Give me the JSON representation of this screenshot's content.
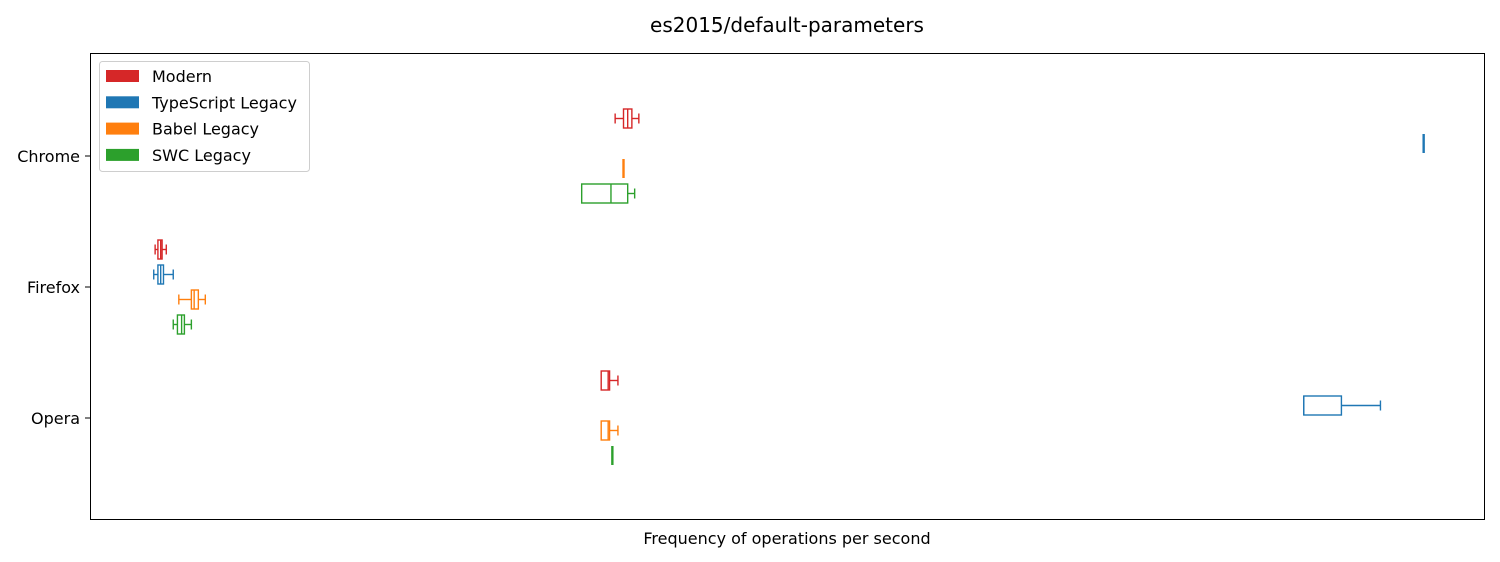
{
  "chart_data": {
    "type": "boxplot",
    "orientation": "horizontal",
    "title": "es2015/default-parameters",
    "xlabel": "Frequency of operations per second",
    "ylabel": "",
    "x_ticks_shown": false,
    "xlim": [
      0,
      100
    ],
    "categories": [
      "Chrome",
      "Firefox",
      "Opera"
    ],
    "legend": {
      "placement": "upper-left",
      "entries": [
        "Modern",
        "TypeScript Legacy",
        "Babel Legacy",
        "SWC Legacy"
      ]
    },
    "series": [
      {
        "name": "Modern",
        "color": "#d62728",
        "boxes": [
          {
            "category": "Chrome",
            "whislo": 37.6,
            "q1": 38.2,
            "med": 38.5,
            "q3": 38.8,
            "whishi": 39.3
          },
          {
            "category": "Firefox",
            "whislo": 4.6,
            "q1": 4.8,
            "med": 5.0,
            "q3": 5.1,
            "whishi": 5.4
          },
          {
            "category": "Opera",
            "whislo": 36.6,
            "q1": 36.6,
            "med": 37.1,
            "q3": 37.2,
            "whishi": 37.8
          }
        ]
      },
      {
        "name": "TypeScript Legacy",
        "color": "#1f77b4",
        "boxes": [
          {
            "category": "Chrome",
            "whislo": 95.6,
            "q1": 95.6,
            "med": 95.6,
            "q3": 95.6,
            "whishi": 95.6
          },
          {
            "category": "Firefox",
            "whislo": 4.5,
            "q1": 4.8,
            "med": 5.0,
            "q3": 5.2,
            "whishi": 5.9
          },
          {
            "category": "Opera",
            "whislo": 87.0,
            "q1": 87.0,
            "med": 87.0,
            "q3": 89.7,
            "whishi": 92.5
          }
        ]
      },
      {
        "name": "Babel Legacy",
        "color": "#ff7f0e",
        "boxes": [
          {
            "category": "Chrome",
            "whislo": 38.2,
            "q1": 38.2,
            "med": 38.2,
            "q3": 38.2,
            "whishi": 38.2
          },
          {
            "category": "Firefox",
            "whislo": 6.3,
            "q1": 7.2,
            "med": 7.4,
            "q3": 7.7,
            "whishi": 8.2
          },
          {
            "category": "Opera",
            "whislo": 36.6,
            "q1": 36.6,
            "med": 37.1,
            "q3": 37.2,
            "whishi": 37.8
          }
        ]
      },
      {
        "name": "SWC Legacy",
        "color": "#2ca02c",
        "boxes": [
          {
            "category": "Chrome",
            "whislo": 35.2,
            "q1": 35.2,
            "med": 37.3,
            "q3": 38.5,
            "whishi": 39.0
          },
          {
            "category": "Firefox",
            "whislo": 5.9,
            "q1": 6.2,
            "med": 6.5,
            "q3": 6.7,
            "whishi": 7.2
          },
          {
            "category": "Opera",
            "whislo": 37.4,
            "q1": 37.4,
            "med": 37.4,
            "q3": 37.4,
            "whishi": 37.4
          }
        ]
      }
    ]
  }
}
